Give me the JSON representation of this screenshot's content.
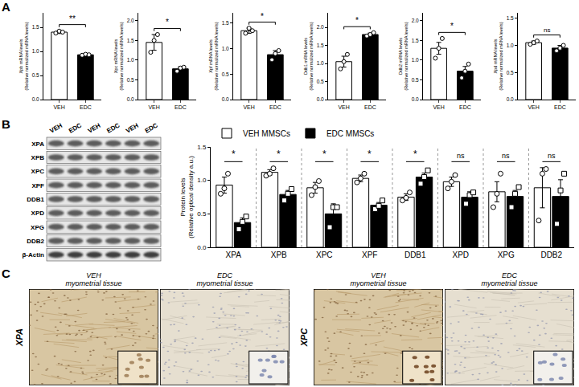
{
  "panel_labels": [
    "A",
    "B",
    "C"
  ],
  "chart_data": [
    {
      "type": "bar",
      "ylabel": [
        "Xpb mRNA levels",
        "(Relative normalized mRNA levels)"
      ],
      "categories": [
        "VEH",
        "EDC"
      ],
      "values": [
        1.4,
        0.93
      ],
      "errors": [
        0.03,
        0.02
      ],
      "points": [
        [
          1.38,
          1.42,
          1.4
        ],
        [
          0.92,
          0.94,
          0.93
        ]
      ],
      "colors": [
        "#ffffff",
        "#000000"
      ],
      "marker": "circle",
      "ylim": [
        0,
        1.8
      ],
      "yticks": [
        {
          "value": 0,
          "label": "0.0"
        },
        0.5,
        {
          "value": 1,
          "label": "1.0"
        },
        1.5
      ],
      "annotations": [
        "**"
      ]
    },
    {
      "type": "bar",
      "ylabel": [
        "Xpc mRNA levels",
        "(Relative normalized mRNA levels)"
      ],
      "categories": [
        "VEH",
        "EDC"
      ],
      "values": [
        1.45,
        0.78
      ],
      "errors": [
        0.2,
        0.05
      ],
      "points": [
        [
          1.2,
          1.5,
          1.65
        ],
        [
          0.72,
          0.8,
          0.82
        ]
      ],
      "colors": [
        "#ffffff",
        "#000000"
      ],
      "marker": "circle",
      "ylim": [
        0,
        2.2
      ],
      "yticks": [
        {
          "value": 0,
          "label": "0.0"
        },
        0.5,
        {
          "value": 1,
          "label": "1.0"
        },
        1.5,
        {
          "value": 2,
          "label": "2.0"
        }
      ],
      "annotations": [
        "*"
      ]
    },
    {
      "type": "bar",
      "ylabel": [
        "Xpf mRNA levels",
        "(Relative normalized mRNA levels)"
      ],
      "categories": [
        "VEH",
        "EDC"
      ],
      "values": [
        1.35,
        0.88
      ],
      "errors": [
        0.05,
        0.08
      ],
      "points": [
        [
          1.3,
          1.4,
          1.35
        ],
        [
          0.78,
          0.9,
          0.96
        ]
      ],
      "colors": [
        "#ffffff",
        "#000000"
      ],
      "marker": "circle",
      "ylim": [
        0,
        1.7
      ],
      "yticks": [
        {
          "value": 0,
          "label": "0.0"
        },
        0.5,
        {
          "value": 1,
          "label": "1.0"
        },
        1.5
      ],
      "annotations": [
        "*"
      ]
    },
    {
      "type": "bar",
      "ylabel": [
        "Ddb1 mRNA levels",
        "(Relative normalized mRNA levels)"
      ],
      "categories": [
        "VEH",
        "EDC"
      ],
      "values": [
        1.05,
        1.8
      ],
      "errors": [
        0.15,
        0.04
      ],
      "points": [
        [
          0.85,
          1.05,
          1.25
        ],
        [
          1.76,
          1.8,
          1.85
        ]
      ],
      "colors": [
        "#ffffff",
        "#000000"
      ],
      "marker": "circle",
      "ylim": [
        0,
        2.4
      ],
      "yticks": [
        {
          "value": 0,
          "label": "0.0"
        },
        0.5,
        {
          "value": 1,
          "label": "1.0"
        },
        1.5,
        {
          "value": 2,
          "label": "2.0"
        }
      ],
      "annotations": [
        "*"
      ]
    },
    {
      "type": "bar",
      "ylabel": [
        "Ddb2 mRNA levels",
        "(Relative normalized mRNA levels)"
      ],
      "categories": [
        "VEH",
        "EDC"
      ],
      "values": [
        1.3,
        0.72
      ],
      "errors": [
        0.15,
        0.12
      ],
      "points": [
        [
          1.05,
          1.3,
          1.55
        ],
        [
          0.55,
          0.72,
          0.9
        ]
      ],
      "colors": [
        "#ffffff",
        "#000000"
      ],
      "marker": "circle",
      "ylim": [
        0,
        2.2
      ],
      "yticks": [
        {
          "value": 0,
          "label": "0.0"
        },
        0.5,
        {
          "value": 1,
          "label": "1.0"
        },
        1.5,
        {
          "value": 2,
          "label": "2.0"
        }
      ],
      "annotations": [
        "*"
      ]
    },
    {
      "type": "bar",
      "ylabel": [
        "Xpd mRNA levels",
        "(Relative normalized mRNA levels)"
      ],
      "categories": [
        "VEH",
        "EDC"
      ],
      "values": [
        1.05,
        0.95
      ],
      "errors": [
        0.03,
        0.05
      ],
      "points": [
        [
          1.02,
          1.05,
          1.08
        ],
        [
          0.9,
          0.95,
          1.0
        ]
      ],
      "colors": [
        "#ffffff",
        "#000000"
      ],
      "marker": "circle",
      "ylim": [
        0,
        1.6
      ],
      "yticks": [
        {
          "value": 0,
          "label": "0.0"
        },
        0.5,
        {
          "value": 1,
          "label": "1.0"
        },
        1.5
      ],
      "annotations": [
        "ns"
      ]
    },
    {
      "type": "bar",
      "ylabel": [
        "Protein levels",
        "(Relative optical density a.u.)"
      ],
      "categories": [
        "XPA",
        "XPB",
        "XPC",
        "XPF",
        "DDB1",
        "XPD",
        "XPG",
        "DDB2"
      ],
      "legend": "top left",
      "series": [
        {
          "name": "VEH MMSCs",
          "color": "#ffffff",
          "marker": "circle",
          "values": [
            0.93,
            1.12,
            0.89,
            1.03,
            0.75,
            0.98,
            0.83,
            0.89
          ],
          "errors": [
            0.12,
            0.04,
            0.08,
            0.05,
            0.05,
            0.07,
            0.15,
            0.3
          ],
          "points": [
            [
              0.8,
              0.88,
              1.1
            ],
            [
              1.07,
              1.1,
              1.18
            ],
            [
              0.78,
              0.9,
              0.99
            ],
            [
              0.97,
              1.03,
              1.1
            ],
            [
              0.7,
              0.74,
              0.82
            ],
            [
              0.88,
              0.98,
              1.08
            ],
            [
              0.6,
              0.8,
              1.1
            ],
            [
              0.4,
              1.1,
              1.17
            ]
          ]
        },
        {
          "name": "EDC MMSCs",
          "color": "#000000",
          "marker": "square",
          "values": [
            0.37,
            0.79,
            0.5,
            0.63,
            1.05,
            0.75,
            0.76,
            0.76
          ],
          "errors": [
            0.07,
            0.06,
            0.15,
            0.04,
            0.06,
            0.08,
            0.09,
            0.25
          ],
          "points": [
            [
              0.27,
              0.38,
              0.46
            ],
            [
              0.7,
              0.8,
              0.87
            ],
            [
              0.3,
              0.6,
              0.6
            ],
            [
              0.57,
              0.62,
              0.7
            ],
            [
              0.95,
              1.05,
              1.15
            ],
            [
              0.65,
              0.78,
              0.82
            ],
            [
              0.6,
              0.8,
              0.9
            ],
            [
              0.35,
              0.85,
              1.1
            ]
          ]
        }
      ],
      "ylim": [
        0,
        1.5
      ],
      "yticks": [
        {
          "value": 0,
          "label": "0.0"
        },
        0.5,
        {
          "value": 1,
          "label": "1.0"
        },
        1.5
      ],
      "annotations": [
        "*",
        "*",
        "*",
        "*",
        "*",
        "ns",
        "ns",
        "ns"
      ]
    }
  ],
  "blot": {
    "lanes": [
      "VEH",
      "EDC",
      "VEH",
      "EDC",
      "VEH",
      "EDC"
    ],
    "rows": [
      "XPA",
      "XPB",
      "XPC",
      "XPF",
      "DDB1",
      "XPD",
      "XPG",
      "DDB2",
      "β-Actin"
    ]
  },
  "histology": [
    {
      "label": "XPA",
      "images": [
        {
          "group": "VEH",
          "tissue": "myometrial tissue"
        },
        {
          "group": "EDC",
          "tissue": "myometrial tissue"
        }
      ]
    },
    {
      "label": "XPC",
      "images": [
        {
          "group": "VEH",
          "tissue": "myometrial tissue"
        },
        {
          "group": "EDC",
          "tissue": "myometrial tissue"
        }
      ]
    }
  ]
}
